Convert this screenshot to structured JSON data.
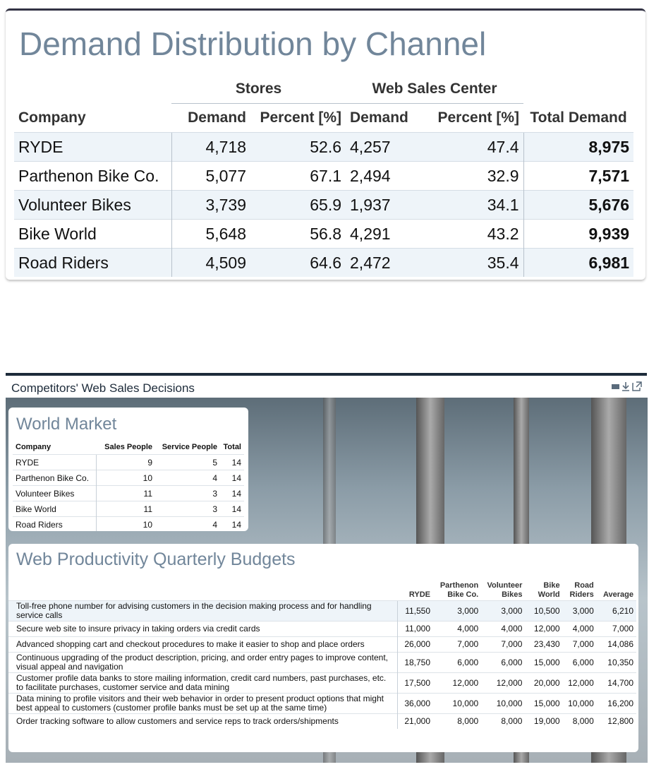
{
  "demand": {
    "title": "Demand Distribution by Channel",
    "group_headers": [
      "Stores",
      "Web Sales Center"
    ],
    "columns": [
      "Company",
      "Demand",
      "Percent [%]",
      "Demand",
      "Percent [%]",
      "Total Demand"
    ],
    "rows": [
      [
        "RYDE",
        "4,718",
        "52.6",
        "4,257",
        "47.4",
        "8,975"
      ],
      [
        "Parthenon Bike Co.",
        "5,077",
        "67.1",
        "2,494",
        "32.9",
        "7,571"
      ],
      [
        "Volunteer Bikes",
        "3,739",
        "65.9",
        "1,937",
        "34.1",
        "5,676"
      ],
      [
        "Bike World",
        "5,648",
        "56.8",
        "4,291",
        "43.2",
        "9,939"
      ],
      [
        "Road Riders",
        "4,509",
        "64.6",
        "2,472",
        "35.4",
        "6,981"
      ]
    ]
  },
  "panel_title": "Competitors' Web Sales Decisions",
  "world_market": {
    "title": "World Market",
    "columns": [
      "Company",
      "Sales People",
      "Service People",
      "Total"
    ],
    "rows": [
      [
        "RYDE",
        "9",
        "5",
        "14"
      ],
      [
        "Parthenon Bike Co.",
        "10",
        "4",
        "14"
      ],
      [
        "Volunteer Bikes",
        "11",
        "3",
        "14"
      ],
      [
        "Bike World",
        "11",
        "3",
        "14"
      ],
      [
        "Road Riders",
        "10",
        "4",
        "14"
      ]
    ]
  },
  "budgets": {
    "title": "Web Productivity Quarterly Budgets",
    "columns": [
      "RYDE",
      "Parthenon Bike Co.",
      "Volunteer Bikes",
      "Bike World",
      "Road Riders",
      "Average"
    ],
    "rows": [
      [
        "Toll-free phone number for advising customers in the decision making process and for handling service calls",
        "11,550",
        "3,000",
        "3,000",
        "10,500",
        "3,000",
        "6,210"
      ],
      [
        "Secure web site to insure privacy in taking orders via credit cards",
        "11,000",
        "4,000",
        "4,000",
        "12,000",
        "4,000",
        "7,000"
      ],
      [
        "Advanced shopping cart and checkout procedures to make it easier to shop and place orders",
        "26,000",
        "7,000",
        "7,000",
        "23,430",
        "7,000",
        "14,086"
      ],
      [
        "Continuous upgrading of the product description, pricing, and order entry pages to improve content, visual appeal and navigation",
        "18,750",
        "6,000",
        "6,000",
        "15,000",
        "6,000",
        "10,350"
      ],
      [
        "Customer profile data banks to store mailing information, credit card numbers, past purchases, etc. to facilitate purchases, customer service and data mining",
        "17,500",
        "12,000",
        "12,000",
        "20,000",
        "12,000",
        "14,700"
      ],
      [
        "Data mining to profile visitors and their web behavior in order to present product options that might best appeal to customers (customer profile banks must be set up at the same time)",
        "36,000",
        "10,000",
        "10,000",
        "15,000",
        "10,000",
        "16,200"
      ],
      [
        "Order tracking software to allow customers and service reps to track orders/shipments",
        "21,000",
        "8,000",
        "8,000",
        "19,000",
        "8,000",
        "12,800"
      ]
    ]
  }
}
